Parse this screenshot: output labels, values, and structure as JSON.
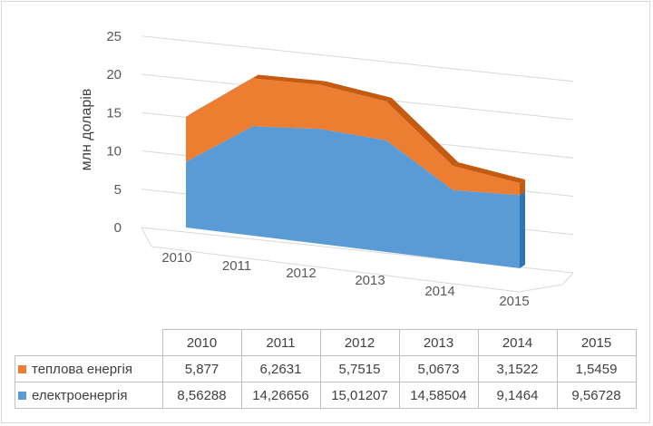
{
  "chart_data": {
    "type": "area",
    "stacked": true,
    "view": "3d",
    "ylabel": "млн доларів",
    "xlabel": "",
    "ylim": [
      0,
      25
    ],
    "yticks": [
      0,
      5,
      10,
      15,
      20,
      25
    ],
    "grid": true,
    "legend": "data-table",
    "categories": [
      "2010",
      "2011",
      "2012",
      "2013",
      "2014",
      "2015"
    ],
    "series": [
      {
        "name": "теплова енергія",
        "color": "#ed7d31",
        "values": [
          5.877,
          6.2631,
          5.7515,
          5.0673,
          3.1522,
          1.5459
        ],
        "labels": [
          "5,877",
          "6,2631",
          "5,7515",
          "5,0673",
          "3,1522",
          "1,5459"
        ]
      },
      {
        "name": "електроенергія",
        "color": "#5b9bd5",
        "values": [
          8.56288,
          14.26656,
          15.01207,
          14.58504,
          9.1464,
          9.56728
        ],
        "labels": [
          "8,56288",
          "14,26656",
          "15,01207",
          "14,58504",
          "9,1464",
          "9,56728"
        ]
      }
    ]
  }
}
